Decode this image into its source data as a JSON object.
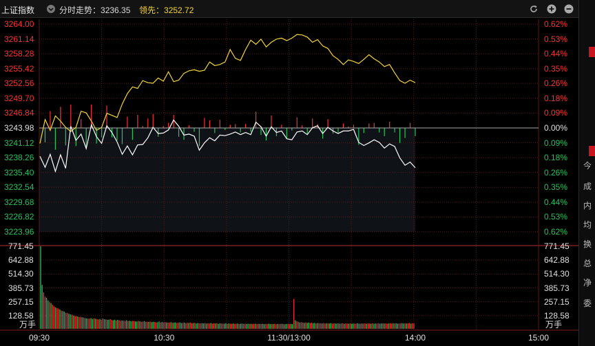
{
  "header": {
    "index_name": "上证指数",
    "trend_prefix": "分时走势：",
    "trend_value": "3236.35",
    "lead_prefix": "领先：",
    "lead_value": "3252.72"
  },
  "price_axis": {
    "left_up": [
      "3264.00",
      "3261.14",
      "3258.28",
      "3255.42",
      "3252.56",
      "3249.70",
      "3246.84"
    ],
    "left_mid": "3243.98",
    "left_down": [
      "3241.12",
      "3238.26",
      "3235.40",
      "3232.54",
      "3229.68",
      "3226.82",
      "3223.96"
    ],
    "right_up": [
      "0.62%",
      "0.53%",
      "0.44%",
      "0.35%",
      "0.26%",
      "0.18%",
      "0.09%"
    ],
    "right_mid": "0.00%",
    "right_down": [
      "0.09%",
      "0.18%",
      "0.26%",
      "0.35%",
      "0.44%",
      "0.53%",
      "0.62%"
    ]
  },
  "volume_axis": {
    "labels": [
      "771.45",
      "642.88",
      "514.30",
      "385.73",
      "257.15",
      "128.58"
    ],
    "unit": "万手"
  },
  "time_axis": [
    "09:30",
    "10:30",
    "11:30/13:00",
    "14:00",
    "15:00"
  ],
  "right_panel": [
    "今",
    "成",
    "内",
    "均",
    "换",
    "总",
    "净",
    "委"
  ],
  "colors": {
    "up": "#ff3030",
    "down": "#22c55e",
    "grid": "#5a1a1a",
    "index_line": "#ffffff",
    "lead_line": "#f3d63a"
  },
  "chart_data": {
    "type": "line",
    "prev_close": 3243.98,
    "ylim": [
      3223.96,
      3264.0
    ],
    "time_ticks": [
      "09:30",
      "10:30",
      "11:30/13:00",
      "14:00",
      "15:00"
    ],
    "series": [
      {
        "name": "分时走势",
        "values": [
          3238.5,
          3236.4,
          3238.9,
          3235.6,
          3238.8,
          3236.2,
          3244.3,
          3241.6,
          3242.8,
          3240.0,
          3244.6,
          3242.3,
          3241.0,
          3244.4,
          3243.1,
          3241.3,
          3238.9,
          3240.5,
          3238.8,
          3240.7,
          3240.8,
          3242.1,
          3244.1,
          3242.9,
          3243.0,
          3243.6,
          3245.5,
          3244.3,
          3242.6,
          3242.8,
          3242.4,
          3239.7,
          3241.1,
          3242.1,
          3241.5,
          3242.6,
          3242.5,
          3242.8,
          3243.2,
          3242.7,
          3243.1,
          3242.7,
          3245.1,
          3244.2,
          3242.4,
          3244.2,
          3243.1,
          3243.4,
          3241.9,
          3241.7,
          3243.2,
          3243.4,
          3242.7,
          3244.0,
          3244.4,
          3242.9,
          3244.1,
          3243.4,
          3242.9,
          3243.4,
          3243.4,
          3243.7,
          3241.2,
          3240.6,
          3241.1,
          3241.7,
          3241.2,
          3240.1,
          3240.9,
          3240.4,
          3238.2,
          3236.8,
          3237.4,
          3236.3
        ]
      },
      {
        "name": "领先",
        "values": [
          3241.0,
          3245.6,
          3243.5,
          3246.3,
          3245.3,
          3244.1,
          3243.3,
          3244.1,
          3247.2,
          3246.9,
          3245.3,
          3243.5,
          3244.1,
          3246.8,
          3246.4,
          3246.0,
          3248.6,
          3250.6,
          3251.9,
          3251.6,
          3253.1,
          3252.7,
          3252.6,
          3253.6,
          3253.0,
          3254.8,
          3252.9,
          3253.2,
          3254.5,
          3255.0,
          3255.2,
          3254.9,
          3255.1,
          3256.7,
          3256.0,
          3256.2,
          3256.7,
          3259.1,
          3257.4,
          3257.0,
          3259.1,
          3260.9,
          3260.1,
          3261.1,
          3259.6,
          3260.5,
          3261.1,
          3261.3,
          3260.8,
          3261.3,
          3262.0,
          3261.9,
          3261.5,
          3260.5,
          3261.0,
          3259.8,
          3259.3,
          3257.9,
          3257.2,
          3256.2,
          3257.1,
          3256.8,
          3256.4,
          3257.2,
          3258.1,
          3257.3,
          3256.7,
          3255.8,
          3256.2,
          3254.6,
          3253.1,
          3252.6,
          3253.2,
          3252.7
        ]
      }
    ],
    "volume": {
      "unit": "万手",
      "ylim": [
        0,
        771.45
      ],
      "values": [
        771.5,
        410,
        340,
        300,
        290,
        265,
        250,
        240,
        225,
        210,
        200,
        195,
        188,
        180,
        170,
        165,
        160,
        150,
        148,
        140,
        135,
        132,
        125,
        120,
        118,
        115,
        110,
        112,
        108,
        105,
        100,
        98,
        96,
        95,
        100,
        92,
        98,
        94,
        90,
        88,
        92,
        85,
        96,
        90,
        88,
        84,
        86,
        90,
        82,
        80,
        85,
        78,
        84,
        80,
        75,
        78,
        76,
        74,
        80,
        72,
        75,
        70,
        74,
        72,
        70,
        68,
        74,
        70,
        66,
        68,
        72,
        65,
        66,
        64,
        68,
        62,
        66,
        64,
        60,
        62,
        68,
        60,
        64,
        58,
        62,
        60,
        58,
        60,
        62,
        56,
        58,
        60,
        55,
        57,
        60,
        54,
        56,
        58,
        53,
        56,
        55,
        58,
        52,
        54,
        56,
        50,
        54,
        52,
        50,
        53,
        51,
        55,
        49,
        52,
        50,
        54,
        48,
        52,
        50,
        53,
        47,
        51,
        50,
        49,
        48,
        52,
        46,
        50,
        48,
        47,
        50,
        46,
        48,
        50,
        45,
        48,
        49,
        46,
        47,
        45,
        48,
        46,
        47,
        45,
        46,
        48,
        44,
        47,
        46,
        45,
        47,
        44,
        46,
        45,
        48,
        44,
        46,
        45,
        47,
        43,
        46,
        44,
        45,
        47,
        44,
        43,
        45,
        46,
        44,
        45,
        43,
        280,
        80,
        70,
        65,
        60,
        62,
        58,
        56,
        60,
        55,
        58,
        54,
        56,
        52,
        55,
        50,
        54,
        53,
        52,
        50,
        54,
        49,
        52,
        51,
        50,
        53,
        48,
        52,
        50,
        49,
        51,
        48,
        50,
        52,
        47,
        50,
        49,
        48,
        51,
        47,
        50,
        48,
        49,
        52,
        47,
        49,
        50,
        48,
        51,
        47,
        50,
        49,
        48,
        52,
        47,
        50,
        49,
        51,
        48,
        50,
        52,
        49,
        51,
        48,
        50,
        53,
        49,
        51,
        50,
        52,
        48,
        51,
        50,
        53,
        49,
        52,
        50,
        51,
        54,
        48,
        52,
        50
      ]
    }
  }
}
